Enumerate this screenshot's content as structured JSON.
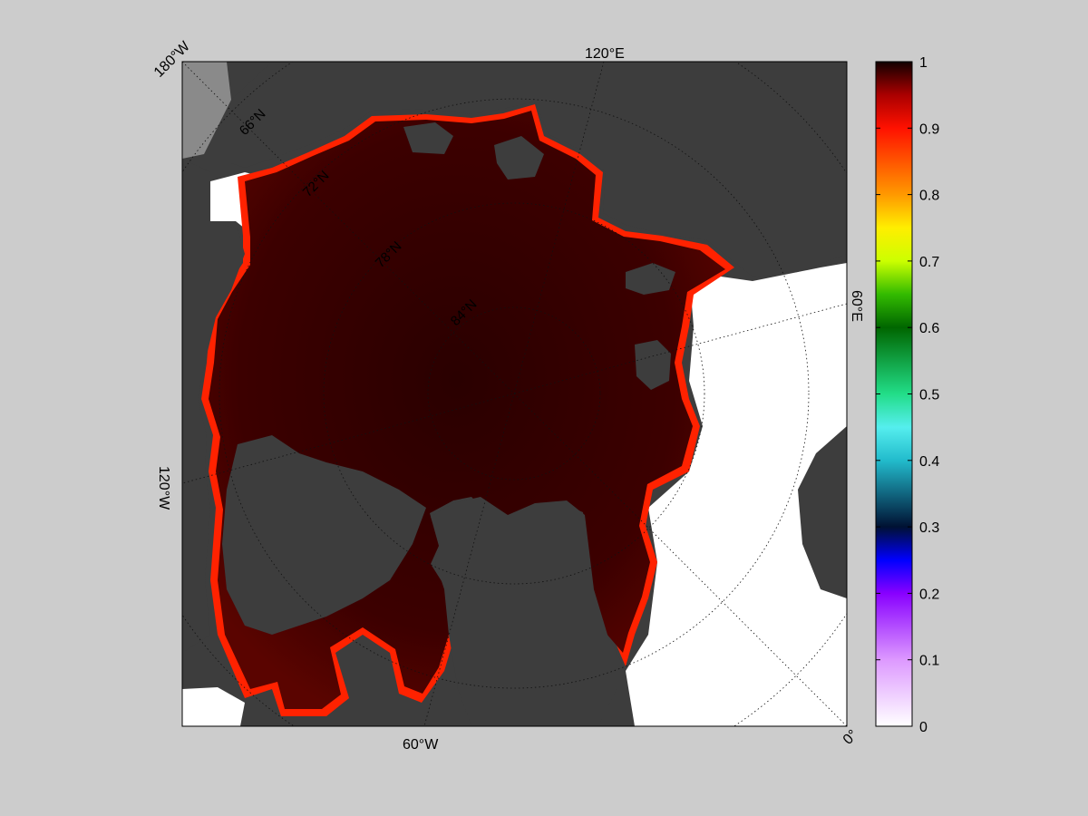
{
  "map": {
    "colors": {
      "figure_background": "#cccccc",
      "land": "#3d3d3d",
      "glacier_ice": "#8a8a8a",
      "open_water": "#ffffff",
      "ice_full": "#3a0000"
    },
    "edge_labels": [
      "180°W",
      "120°E",
      "60°E",
      "0°",
      "60°W",
      "120°W"
    ],
    "inner_lat_labels": [
      "66°N",
      "72°N",
      "78°N",
      "84°N"
    ]
  },
  "colorbar": {
    "ticks": [
      "1",
      "0.9",
      "0.8",
      "0.7",
      "0.6",
      "0.5",
      "0.4",
      "0.3",
      "0.2",
      "0.1",
      "0"
    ],
    "stops": [
      {
        "v": 0.0,
        "c": "#ffffff"
      },
      {
        "v": 0.1,
        "c": "#dd99ff"
      },
      {
        "v": 0.2,
        "c": "#8800ff"
      },
      {
        "v": 0.25,
        "c": "#0000ff"
      },
      {
        "v": 0.3,
        "c": "#001133"
      },
      {
        "v": 0.4,
        "c": "#22bbcc"
      },
      {
        "v": 0.45,
        "c": "#55eeee"
      },
      {
        "v": 0.5,
        "c": "#22dd88"
      },
      {
        "v": 0.6,
        "c": "#006600"
      },
      {
        "v": 0.65,
        "c": "#33bb00"
      },
      {
        "v": 0.7,
        "c": "#ccff00"
      },
      {
        "v": 0.75,
        "c": "#ffee00"
      },
      {
        "v": 0.8,
        "c": "#ff9900"
      },
      {
        "v": 0.9,
        "c": "#ff1100"
      },
      {
        "v": 0.95,
        "c": "#aa0000"
      },
      {
        "v": 1.0,
        "c": "#110000"
      }
    ]
  }
}
